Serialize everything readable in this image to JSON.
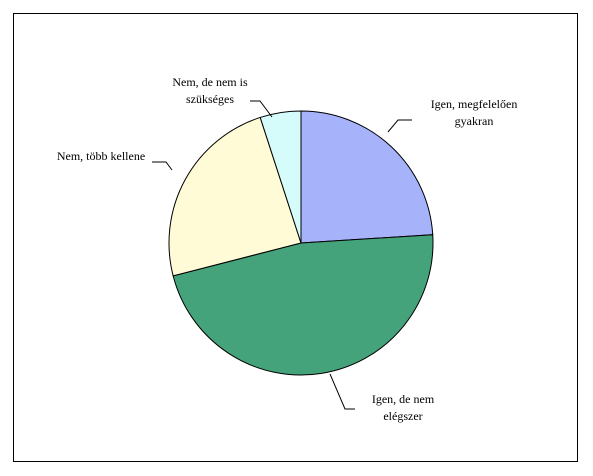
{
  "chart_data": {
    "type": "pie",
    "title": "",
    "slices": [
      {
        "label": "Igen, megfelelően gyakran",
        "label_lines": [
          "Igen, megfelelően",
          "gyakran"
        ],
        "value": 24,
        "color": "#a6b2fa"
      },
      {
        "label": "Igen, de nem elégszer",
        "label_lines": [
          "Igen, de nem",
          "elégszer"
        ],
        "value": 47,
        "color": "#45a37b"
      },
      {
        "label": "Nem, több kellene",
        "label_lines": [
          "Nem, több kellene"
        ],
        "value": 24,
        "color": "#fffbd6"
      },
      {
        "label": "Nem, de nem is szükséges",
        "label_lines": [
          "Nem, de nem is",
          "szükséges"
        ],
        "value": 5,
        "color": "#d5fbfb"
      }
    ],
    "start_angle_deg": 90,
    "direction": "clockwise",
    "legend": "none",
    "data_labels": "category names with leader lines"
  }
}
